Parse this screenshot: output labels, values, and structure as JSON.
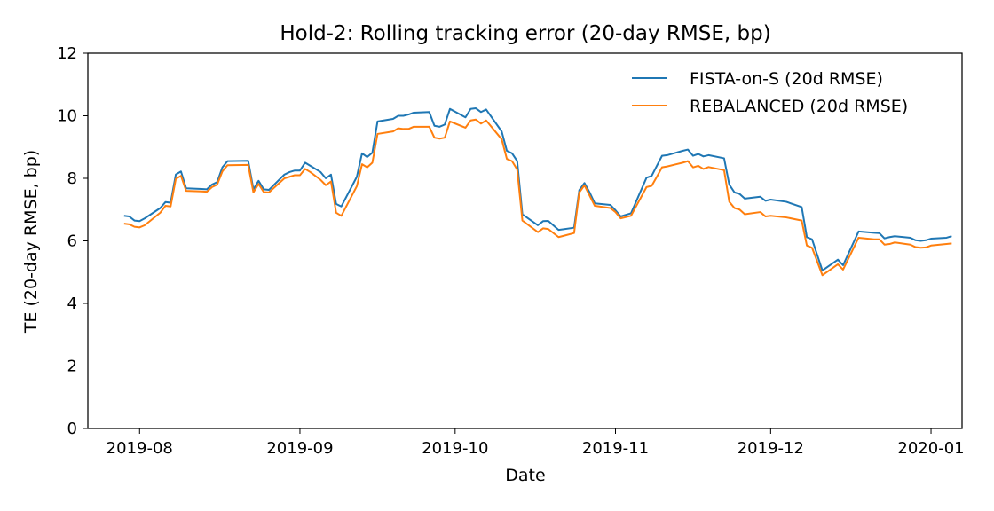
{
  "chart_data": {
    "type": "line",
    "title": "Hold-2: Rolling tracking error (20-day RMSE, bp)",
    "xlabel": "Date",
    "ylabel": "TE (20-day RMSE, bp)",
    "xlim": [
      "2019-07-22",
      "2020-01-07"
    ],
    "ylim": [
      0,
      12
    ],
    "x_ticks": [
      "2019-08",
      "2019-09",
      "2019-10",
      "2019-11",
      "2019-12",
      "2020-01"
    ],
    "y_ticks": [
      "0",
      "2",
      "4",
      "6",
      "8",
      "10",
      "12"
    ],
    "legend_position": "top-right",
    "grid": false,
    "series": [
      {
        "name": "FISTA-on-S (20d RMSE)",
        "color": "#1f77b4",
        "points": [
          [
            "2019-07-29",
            6.8
          ],
          [
            "2019-07-30",
            6.78
          ],
          [
            "2019-07-31",
            6.65
          ],
          [
            "2019-08-01",
            6.63
          ],
          [
            "2019-08-02",
            6.72
          ],
          [
            "2019-08-05",
            7.05
          ],
          [
            "2019-08-06",
            7.24
          ],
          [
            "2019-08-07",
            7.22
          ],
          [
            "2019-08-08",
            8.12
          ],
          [
            "2019-08-09",
            8.22
          ],
          [
            "2019-08-10",
            7.68
          ],
          [
            "2019-08-13",
            7.66
          ],
          [
            "2019-08-14",
            7.65
          ],
          [
            "2019-08-15",
            7.8
          ],
          [
            "2019-08-16",
            7.88
          ],
          [
            "2019-08-17",
            8.35
          ],
          [
            "2019-08-18",
            8.55
          ],
          [
            "2019-08-22",
            8.56
          ],
          [
            "2019-08-23",
            7.65
          ],
          [
            "2019-08-24",
            7.92
          ],
          [
            "2019-08-25",
            7.65
          ],
          [
            "2019-08-26",
            7.63
          ],
          [
            "2019-08-29",
            8.12
          ],
          [
            "2019-08-30",
            8.2
          ],
          [
            "2019-08-31",
            8.25
          ],
          [
            "2019-09-01",
            8.25
          ],
          [
            "2019-09-02",
            8.5
          ],
          [
            "2019-09-03",
            8.4
          ],
          [
            "2019-09-05",
            8.2
          ],
          [
            "2019-09-06",
            8.0
          ],
          [
            "2019-09-07",
            8.12
          ],
          [
            "2019-09-08",
            7.18
          ],
          [
            "2019-09-09",
            7.1
          ],
          [
            "2019-09-12",
            8.05
          ],
          [
            "2019-09-13",
            8.8
          ],
          [
            "2019-09-14",
            8.68
          ],
          [
            "2019-09-15",
            8.82
          ],
          [
            "2019-09-16",
            9.82
          ],
          [
            "2019-09-19",
            9.9
          ],
          [
            "2019-09-20",
            10.0
          ],
          [
            "2019-09-21",
            10.0
          ],
          [
            "2019-09-22",
            10.04
          ],
          [
            "2019-09-23",
            10.1
          ],
          [
            "2019-09-26",
            10.12
          ],
          [
            "2019-09-27",
            9.68
          ],
          [
            "2019-09-28",
            9.65
          ],
          [
            "2019-09-29",
            9.72
          ],
          [
            "2019-09-30",
            10.22
          ],
          [
            "2019-10-03",
            9.95
          ],
          [
            "2019-10-04",
            10.22
          ],
          [
            "2019-10-05",
            10.24
          ],
          [
            "2019-10-06",
            10.12
          ],
          [
            "2019-10-07",
            10.2
          ],
          [
            "2019-10-10",
            9.5
          ],
          [
            "2019-10-11",
            8.88
          ],
          [
            "2019-10-12",
            8.8
          ],
          [
            "2019-10-13",
            8.55
          ],
          [
            "2019-10-14",
            6.85
          ],
          [
            "2019-10-17",
            6.5
          ],
          [
            "2019-10-18",
            6.63
          ],
          [
            "2019-10-19",
            6.64
          ],
          [
            "2019-10-21",
            6.35
          ],
          [
            "2019-10-24",
            6.42
          ],
          [
            "2019-10-25",
            7.62
          ],
          [
            "2019-10-26",
            7.85
          ],
          [
            "2019-10-27",
            7.55
          ],
          [
            "2019-10-28",
            7.2
          ],
          [
            "2019-10-31",
            7.15
          ],
          [
            "2019-11-01",
            6.98
          ],
          [
            "2019-11-02",
            6.78
          ],
          [
            "2019-11-04",
            6.88
          ],
          [
            "2019-11-07",
            8.02
          ],
          [
            "2019-11-08",
            8.08
          ],
          [
            "2019-11-09",
            8.4
          ],
          [
            "2019-11-10",
            8.72
          ],
          [
            "2019-11-11",
            8.74
          ],
          [
            "2019-11-14",
            8.88
          ],
          [
            "2019-11-15",
            8.92
          ],
          [
            "2019-11-16",
            8.72
          ],
          [
            "2019-11-17",
            8.78
          ],
          [
            "2019-11-18",
            8.7
          ],
          [
            "2019-11-19",
            8.74
          ],
          [
            "2019-11-22",
            8.64
          ],
          [
            "2019-11-23",
            7.8
          ],
          [
            "2019-11-24",
            7.55
          ],
          [
            "2019-11-25",
            7.5
          ],
          [
            "2019-11-26",
            7.35
          ],
          [
            "2019-11-29",
            7.41
          ],
          [
            "2019-11-30",
            7.28
          ],
          [
            "2019-12-01",
            7.32
          ],
          [
            "2019-12-04",
            7.25
          ],
          [
            "2019-12-07",
            7.08
          ],
          [
            "2019-12-08",
            6.12
          ],
          [
            "2019-12-09",
            6.05
          ],
          [
            "2019-12-11",
            5.05
          ],
          [
            "2019-12-14",
            5.4
          ],
          [
            "2019-12-15",
            5.22
          ],
          [
            "2019-12-18",
            6.3
          ],
          [
            "2019-12-21",
            6.26
          ],
          [
            "2019-12-22",
            6.25
          ],
          [
            "2019-12-23",
            6.08
          ],
          [
            "2019-12-24",
            6.12
          ],
          [
            "2019-12-25",
            6.15
          ],
          [
            "2019-12-28",
            6.1
          ],
          [
            "2019-12-29",
            6.02
          ],
          [
            "2019-12-30",
            6.0
          ],
          [
            "2019-12-31",
            6.02
          ],
          [
            "2020-01-01",
            6.07
          ],
          [
            "2020-01-04",
            6.1
          ],
          [
            "2020-01-05",
            6.15
          ]
        ]
      },
      {
        "name": "REBALANCED (20d RMSE)",
        "color": "#ff7f0e",
        "points": [
          [
            "2019-07-29",
            6.55
          ],
          [
            "2019-07-30",
            6.53
          ],
          [
            "2019-07-31",
            6.45
          ],
          [
            "2019-08-01",
            6.43
          ],
          [
            "2019-08-02",
            6.5
          ],
          [
            "2019-08-05",
            6.9
          ],
          [
            "2019-08-06",
            7.12
          ],
          [
            "2019-08-07",
            7.1
          ],
          [
            "2019-08-08",
            7.98
          ],
          [
            "2019-08-09",
            8.08
          ],
          [
            "2019-08-10",
            7.6
          ],
          [
            "2019-08-13",
            7.58
          ],
          [
            "2019-08-14",
            7.57
          ],
          [
            "2019-08-15",
            7.72
          ],
          [
            "2019-08-16",
            7.8
          ],
          [
            "2019-08-17",
            8.22
          ],
          [
            "2019-08-18",
            8.42
          ],
          [
            "2019-08-22",
            8.43
          ],
          [
            "2019-08-23",
            7.55
          ],
          [
            "2019-08-24",
            7.82
          ],
          [
            "2019-08-25",
            7.56
          ],
          [
            "2019-08-26",
            7.55
          ],
          [
            "2019-08-29",
            8.0
          ],
          [
            "2019-08-30",
            8.05
          ],
          [
            "2019-08-31",
            8.1
          ],
          [
            "2019-09-01",
            8.1
          ],
          [
            "2019-09-02",
            8.3
          ],
          [
            "2019-09-03",
            8.2
          ],
          [
            "2019-09-05",
            7.95
          ],
          [
            "2019-09-06",
            7.78
          ],
          [
            "2019-09-07",
            7.9
          ],
          [
            "2019-09-08",
            6.9
          ],
          [
            "2019-09-09",
            6.8
          ],
          [
            "2019-09-12",
            7.75
          ],
          [
            "2019-09-13",
            8.45
          ],
          [
            "2019-09-14",
            8.35
          ],
          [
            "2019-09-15",
            8.5
          ],
          [
            "2019-09-16",
            9.42
          ],
          [
            "2019-09-19",
            9.5
          ],
          [
            "2019-09-20",
            9.6
          ],
          [
            "2019-09-21",
            9.58
          ],
          [
            "2019-09-22",
            9.58
          ],
          [
            "2019-09-23",
            9.65
          ],
          [
            "2019-09-26",
            9.65
          ],
          [
            "2019-09-27",
            9.3
          ],
          [
            "2019-09-28",
            9.27
          ],
          [
            "2019-09-29",
            9.3
          ],
          [
            "2019-09-30",
            9.82
          ],
          [
            "2019-10-03",
            9.62
          ],
          [
            "2019-10-04",
            9.85
          ],
          [
            "2019-10-05",
            9.88
          ],
          [
            "2019-10-06",
            9.75
          ],
          [
            "2019-10-07",
            9.85
          ],
          [
            "2019-10-10",
            9.25
          ],
          [
            "2019-10-11",
            8.62
          ],
          [
            "2019-10-12",
            8.55
          ],
          [
            "2019-10-13",
            8.28
          ],
          [
            "2019-10-14",
            6.65
          ],
          [
            "2019-10-17",
            6.28
          ],
          [
            "2019-10-18",
            6.4
          ],
          [
            "2019-10-19",
            6.38
          ],
          [
            "2019-10-21",
            6.12
          ],
          [
            "2019-10-24",
            6.25
          ],
          [
            "2019-10-25",
            7.55
          ],
          [
            "2019-10-26",
            7.78
          ],
          [
            "2019-10-27",
            7.45
          ],
          [
            "2019-10-28",
            7.12
          ],
          [
            "2019-10-31",
            7.05
          ],
          [
            "2019-11-01",
            6.92
          ],
          [
            "2019-11-02",
            6.72
          ],
          [
            "2019-11-04",
            6.8
          ],
          [
            "2019-11-07",
            7.72
          ],
          [
            "2019-11-08",
            7.76
          ],
          [
            "2019-11-09",
            8.05
          ],
          [
            "2019-11-10",
            8.35
          ],
          [
            "2019-11-11",
            8.38
          ],
          [
            "2019-11-14",
            8.5
          ],
          [
            "2019-11-15",
            8.55
          ],
          [
            "2019-11-16",
            8.35
          ],
          [
            "2019-11-17",
            8.4
          ],
          [
            "2019-11-18",
            8.3
          ],
          [
            "2019-11-19",
            8.36
          ],
          [
            "2019-11-22",
            8.26
          ],
          [
            "2019-11-23",
            7.25
          ],
          [
            "2019-11-24",
            7.05
          ],
          [
            "2019-11-25",
            7.0
          ],
          [
            "2019-11-26",
            6.85
          ],
          [
            "2019-11-29",
            6.92
          ],
          [
            "2019-11-30",
            6.78
          ],
          [
            "2019-12-01",
            6.8
          ],
          [
            "2019-12-04",
            6.75
          ],
          [
            "2019-12-07",
            6.65
          ],
          [
            "2019-12-08",
            5.85
          ],
          [
            "2019-12-09",
            5.78
          ],
          [
            "2019-12-11",
            4.9
          ],
          [
            "2019-12-14",
            5.25
          ],
          [
            "2019-12-15",
            5.08
          ],
          [
            "2019-12-18",
            6.1
          ],
          [
            "2019-12-21",
            6.05
          ],
          [
            "2019-12-22",
            6.05
          ],
          [
            "2019-12-23",
            5.88
          ],
          [
            "2019-12-24",
            5.9
          ],
          [
            "2019-12-25",
            5.95
          ],
          [
            "2019-12-28",
            5.88
          ],
          [
            "2019-12-29",
            5.8
          ],
          [
            "2019-12-30",
            5.78
          ],
          [
            "2019-12-31",
            5.79
          ],
          [
            "2020-01-01",
            5.85
          ],
          [
            "2020-01-04",
            5.9
          ],
          [
            "2020-01-05",
            5.92
          ]
        ]
      }
    ]
  }
}
